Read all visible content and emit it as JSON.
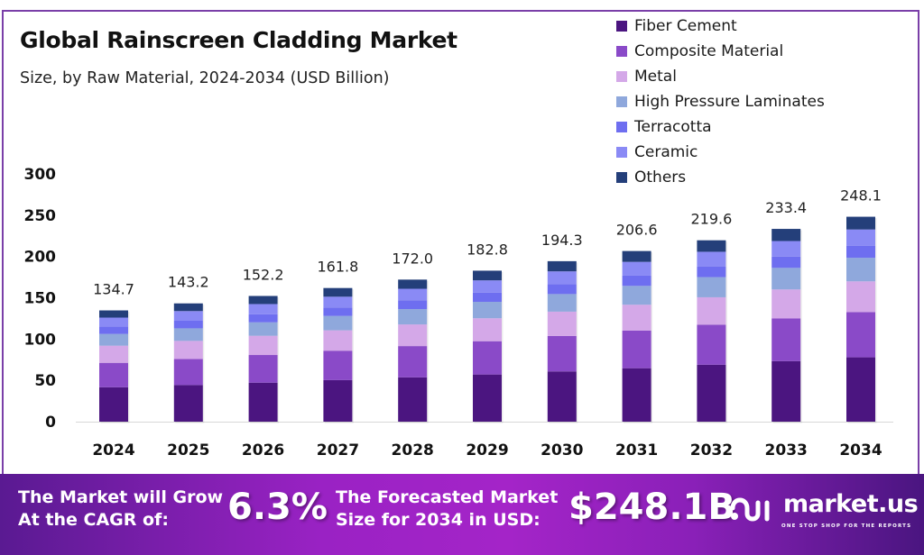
{
  "header": {
    "title": "Global Rainscreen Cladding Market",
    "subtitle": "Size, by Raw Material, 2024-2034 (USD Billion)"
  },
  "legend": [
    {
      "label": "Fiber Cement",
      "color": "#4b1580"
    },
    {
      "label": "Composite Material",
      "color": "#8a4ac8"
    },
    {
      "label": "Metal",
      "color": "#d4a8e8"
    },
    {
      "label": "High Pressure Laminates",
      "color": "#8fa8dc"
    },
    {
      "label": "Terracotta",
      "color": "#6e6ef0"
    },
    {
      "label": "Ceramic",
      "color": "#8a8af5"
    },
    {
      "label": "Others",
      "color": "#243f7a"
    }
  ],
  "chart_data": {
    "type": "bar",
    "stacked": true,
    "title": "Global Rainscreen Cladding Market",
    "subtitle": "Size, by Raw Material, 2024-2034 (USD Billion)",
    "xlabel": "",
    "ylabel": "",
    "ylim": [
      0,
      300
    ],
    "yticks": [
      0,
      50,
      100,
      150,
      200,
      250,
      300
    ],
    "grid": false,
    "legend_position": "top-right",
    "categories": [
      "2024",
      "2025",
      "2026",
      "2027",
      "2028",
      "2029",
      "2030",
      "2031",
      "2032",
      "2033",
      "2034"
    ],
    "totals": [
      134.7,
      143.2,
      152.2,
      161.8,
      172.0,
      182.8,
      194.3,
      206.6,
      219.6,
      233.4,
      248.1
    ],
    "total_labels": [
      "134.7",
      "143.2",
      "152.2",
      "161.8",
      "172.0",
      "182.8",
      "194.3",
      "206.6",
      "219.6",
      "233.4",
      "248.1"
    ],
    "series": [
      {
        "name": "Fiber Cement",
        "color": "#4b1580",
        "values": [
          41.6,
          44.3,
          47.2,
          50.3,
          53.6,
          57.1,
          60.8,
          64.7,
          68.9,
          73.3,
          77.9
        ]
      },
      {
        "name": "Composite Material",
        "color": "#8a4ac8",
        "values": [
          29.6,
          31.5,
          33.5,
          35.6,
          37.9,
          40.3,
          42.9,
          45.6,
          48.5,
          51.6,
          54.8
        ]
      },
      {
        "name": "Metal",
        "color": "#d4a8e8",
        "values": [
          20.8,
          22.0,
          23.3,
          24.7,
          26.2,
          27.8,
          29.5,
          31.3,
          33.2,
          35.2,
          37.2
        ]
      },
      {
        "name": "High Pressure Laminates",
        "color": "#8fa8dc",
        "values": [
          14.2,
          15.2,
          16.3,
          17.4,
          18.6,
          19.9,
          21.3,
          22.8,
          24.4,
          26.1,
          28.5
        ]
      },
      {
        "name": "Terracotta",
        "color": "#6e6ef0",
        "values": [
          8.8,
          9.2,
          9.7,
          10.2,
          10.7,
          11.2,
          11.8,
          12.4,
          13.0,
          13.7,
          14.4
        ]
      },
      {
        "name": "Ceramic",
        "color": "#8a8af5",
        "values": [
          11.0,
          11.7,
          12.4,
          13.1,
          13.9,
          14.8,
          15.7,
          16.7,
          17.7,
          18.8,
          19.9
        ]
      },
      {
        "name": "Others",
        "color": "#243f7a",
        "values": [
          8.7,
          9.3,
          9.8,
          10.5,
          11.1,
          11.7,
          12.3,
          13.1,
          13.9,
          14.7,
          15.4
        ]
      }
    ]
  },
  "banner": {
    "cagr_text_line1": "The Market will Grow",
    "cagr_text_line2": "At the CAGR of:",
    "cagr_value": "6.3%",
    "forecast_text_line1": "The Forecasted Market",
    "forecast_text_line2": "Size for 2034 in USD:",
    "forecast_value": "$248.1B",
    "brand_name": "market.us",
    "brand_tagline": "ONE STOP SHOP FOR THE REPORTS"
  }
}
